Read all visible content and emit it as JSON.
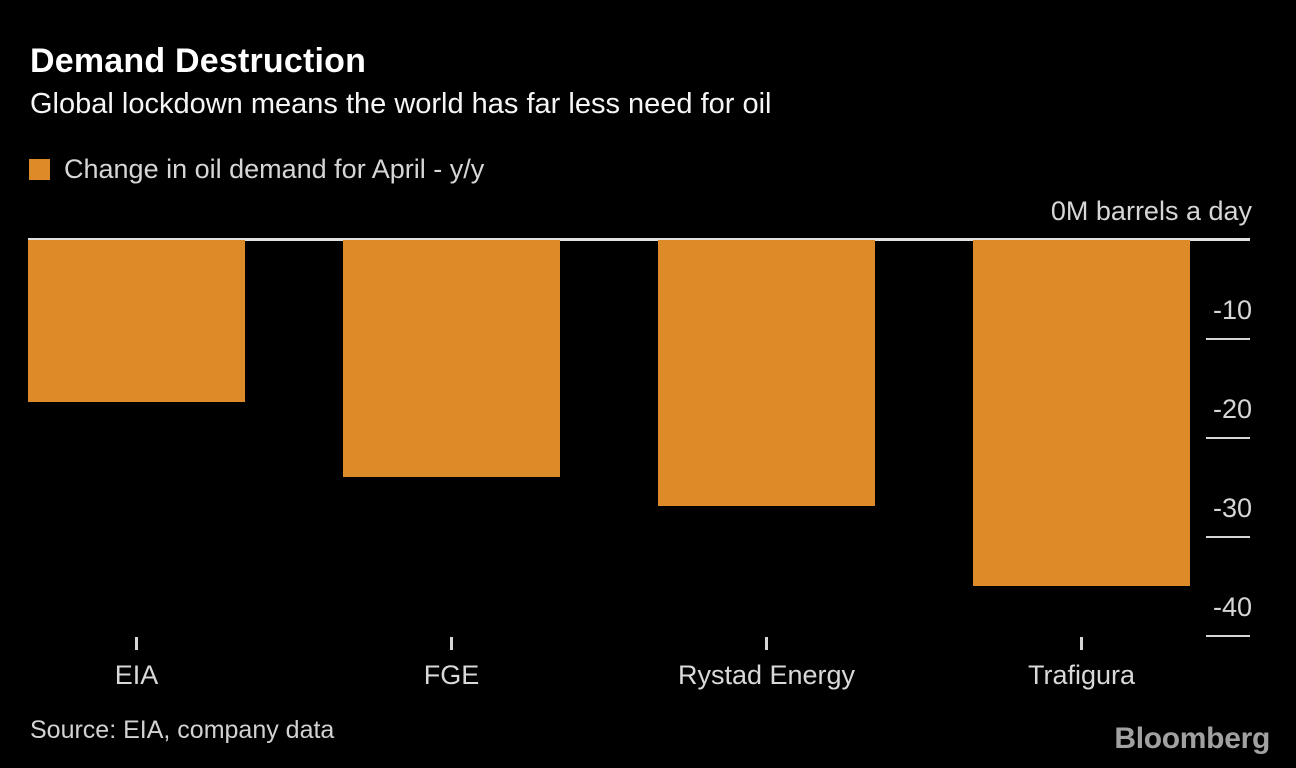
{
  "header": {
    "title": "Demand Destruction",
    "subtitle": "Global lockdown means the world has far less need for oil"
  },
  "legend": {
    "label": "Change in oil demand for April - y/y",
    "swatch_color": "#dd8b28"
  },
  "chart_data": {
    "type": "bar",
    "title": "Demand Destruction",
    "subtitle": "Global lockdown means the world has far less need for oil",
    "series_name": "Change in oil demand for April - y/y",
    "categories": [
      "EIA",
      "FGE",
      "Rystad Energy",
      "Trafigura"
    ],
    "values": [
      -16.5,
      -24,
      -27,
      -35
    ],
    "unit_axis_label": "0M barrels a day",
    "ylabel": "M barrels a day",
    "yticks": [
      -10,
      -20,
      -30,
      -40
    ],
    "ylim": [
      -42,
      0
    ],
    "axis_side": "right",
    "grid": false,
    "legend_position": "top-left",
    "bar_color": "#dd8b28",
    "background_color": "#000000"
  },
  "footer": {
    "source": "Source: EIA, company data",
    "logo": "Bloomberg"
  },
  "colors": {
    "background": "#000000",
    "bar": "#dd8b28",
    "text_primary": "#ffffff",
    "text_secondary": "#d6d6d6",
    "zero_line": "#e0e0e0",
    "logo": "#a1a1a1"
  }
}
